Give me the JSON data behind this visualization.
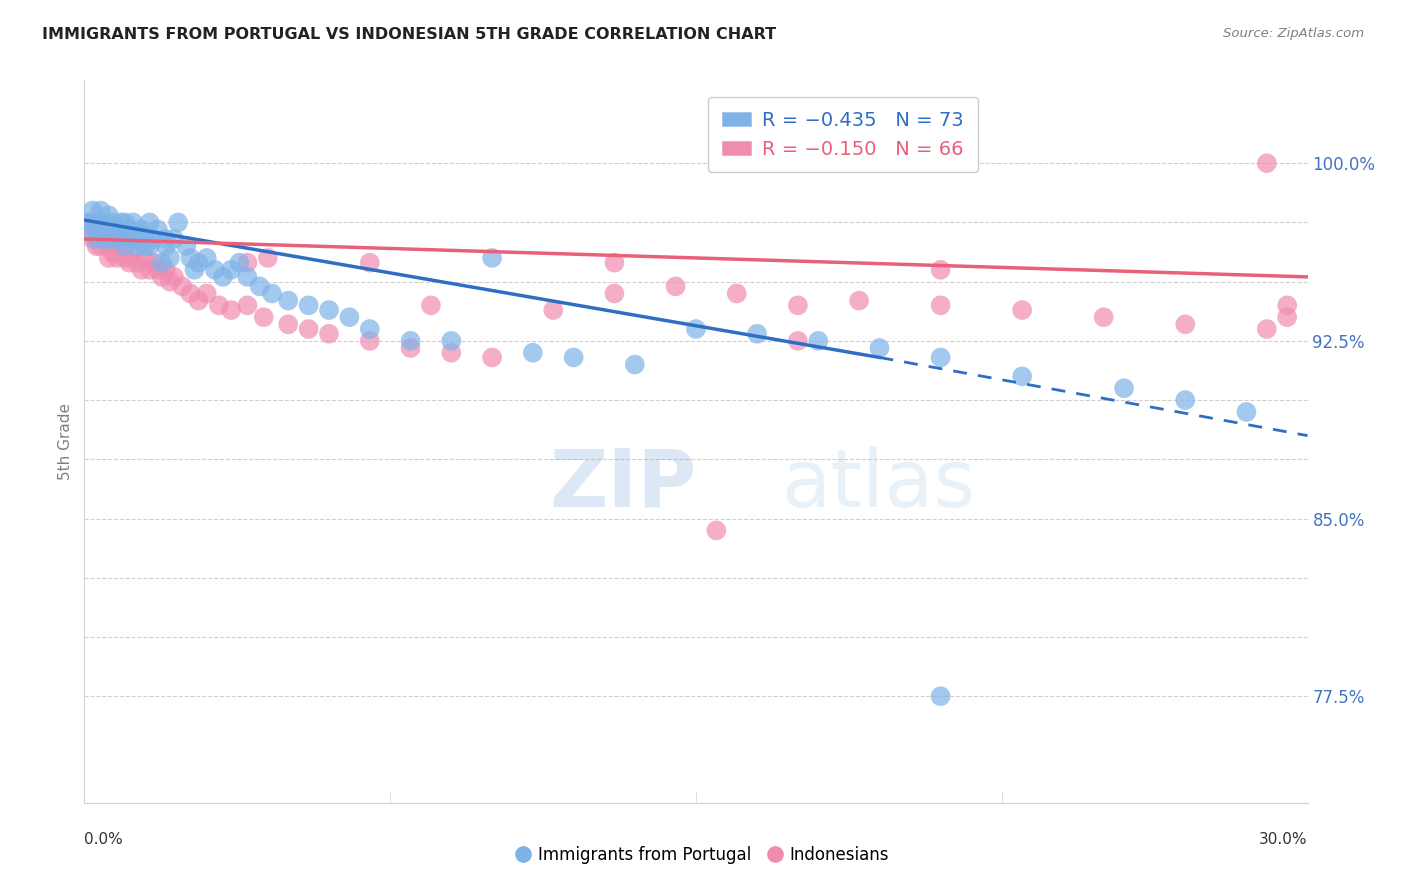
{
  "title": "IMMIGRANTS FROM PORTUGAL VS INDONESIAN 5TH GRADE CORRELATION CHART",
  "source": "Source: ZipAtlas.com",
  "ylabel": "5th Grade",
  "xlim": [
    0.0,
    0.3
  ],
  "ylim": [
    0.73,
    1.035
  ],
  "legend_R1": "R = −0.435",
  "legend_N1": "N = 73",
  "legend_R2": "R = −0.150",
  "legend_N2": "N = 66",
  "blue_color": "#7EB3E8",
  "pink_color": "#F08CB0",
  "blue_line_color": "#2E6EC4",
  "pink_line_color": "#E8607A",
  "right_ytick_positions": [
    0.775,
    0.8,
    0.825,
    0.85,
    0.875,
    0.9,
    0.925,
    0.95,
    0.975,
    1.0
  ],
  "right_ytick_labels": [
    "77.5%",
    "",
    "",
    "85.0%",
    "",
    "",
    "92.5%",
    "",
    "",
    "100.0%"
  ],
  "blue_scatter_x": [
    0.001,
    0.002,
    0.002,
    0.003,
    0.003,
    0.003,
    0.004,
    0.004,
    0.005,
    0.005,
    0.006,
    0.006,
    0.007,
    0.007,
    0.008,
    0.008,
    0.009,
    0.009,
    0.01,
    0.01,
    0.011,
    0.011,
    0.012,
    0.012,
    0.013,
    0.013,
    0.014,
    0.014,
    0.015,
    0.015,
    0.016,
    0.016,
    0.017,
    0.018,
    0.019,
    0.02,
    0.02,
    0.021,
    0.022,
    0.023,
    0.025,
    0.026,
    0.027,
    0.028,
    0.03,
    0.032,
    0.034,
    0.036,
    0.038,
    0.04,
    0.043,
    0.046,
    0.05,
    0.055,
    0.06,
    0.065,
    0.07,
    0.08,
    0.09,
    0.1,
    0.11,
    0.12,
    0.135,
    0.15,
    0.165,
    0.18,
    0.195,
    0.21,
    0.23,
    0.255,
    0.27,
    0.285,
    0.21
  ],
  "blue_scatter_y": [
    0.975,
    0.972,
    0.98,
    0.97,
    0.968,
    0.975,
    0.972,
    0.98,
    0.968,
    0.975,
    0.968,
    0.978,
    0.97,
    0.975,
    0.968,
    0.972,
    0.97,
    0.975,
    0.965,
    0.975,
    0.972,
    0.968,
    0.975,
    0.97,
    0.968,
    0.965,
    0.97,
    0.972,
    0.965,
    0.968,
    0.965,
    0.975,
    0.968,
    0.972,
    0.958,
    0.968,
    0.965,
    0.96,
    0.968,
    0.975,
    0.965,
    0.96,
    0.955,
    0.958,
    0.96,
    0.955,
    0.952,
    0.955,
    0.958,
    0.952,
    0.948,
    0.945,
    0.942,
    0.94,
    0.938,
    0.935,
    0.93,
    0.925,
    0.925,
    0.96,
    0.92,
    0.918,
    0.915,
    0.93,
    0.928,
    0.925,
    0.922,
    0.918,
    0.91,
    0.905,
    0.9,
    0.895,
    0.775
  ],
  "pink_scatter_x": [
    0.001,
    0.002,
    0.002,
    0.003,
    0.003,
    0.004,
    0.004,
    0.005,
    0.006,
    0.006,
    0.007,
    0.007,
    0.008,
    0.008,
    0.009,
    0.01,
    0.01,
    0.011,
    0.012,
    0.013,
    0.014,
    0.015,
    0.016,
    0.017,
    0.018,
    0.019,
    0.02,
    0.021,
    0.022,
    0.024,
    0.026,
    0.028,
    0.03,
    0.033,
    0.036,
    0.04,
    0.044,
    0.05,
    0.055,
    0.06,
    0.07,
    0.08,
    0.09,
    0.1,
    0.115,
    0.13,
    0.145,
    0.16,
    0.175,
    0.19,
    0.21,
    0.23,
    0.25,
    0.27,
    0.29,
    0.045,
    0.175,
    0.29,
    0.07,
    0.13,
    0.21,
    0.155,
    0.295,
    0.295,
    0.085,
    0.04
  ],
  "pink_scatter_y": [
    0.975,
    0.97,
    0.968,
    0.972,
    0.965,
    0.97,
    0.965,
    0.968,
    0.965,
    0.96,
    0.968,
    0.962,
    0.965,
    0.96,
    0.968,
    0.965,
    0.96,
    0.958,
    0.962,
    0.958,
    0.955,
    0.96,
    0.955,
    0.958,
    0.955,
    0.952,
    0.955,
    0.95,
    0.952,
    0.948,
    0.945,
    0.942,
    0.945,
    0.94,
    0.938,
    0.94,
    0.935,
    0.932,
    0.93,
    0.928,
    0.925,
    0.922,
    0.92,
    0.918,
    0.938,
    0.945,
    0.948,
    0.945,
    0.94,
    0.942,
    0.94,
    0.938,
    0.935,
    0.932,
    0.93,
    0.96,
    0.925,
    1.0,
    0.958,
    0.958,
    0.955,
    0.845,
    0.94,
    0.935,
    0.94,
    0.958
  ],
  "blue_line_x0": 0.0,
  "blue_line_x_solid_end": 0.195,
  "blue_line_x_end": 0.3,
  "pink_line_x0": 0.0,
  "pink_line_x_end": 0.3
}
